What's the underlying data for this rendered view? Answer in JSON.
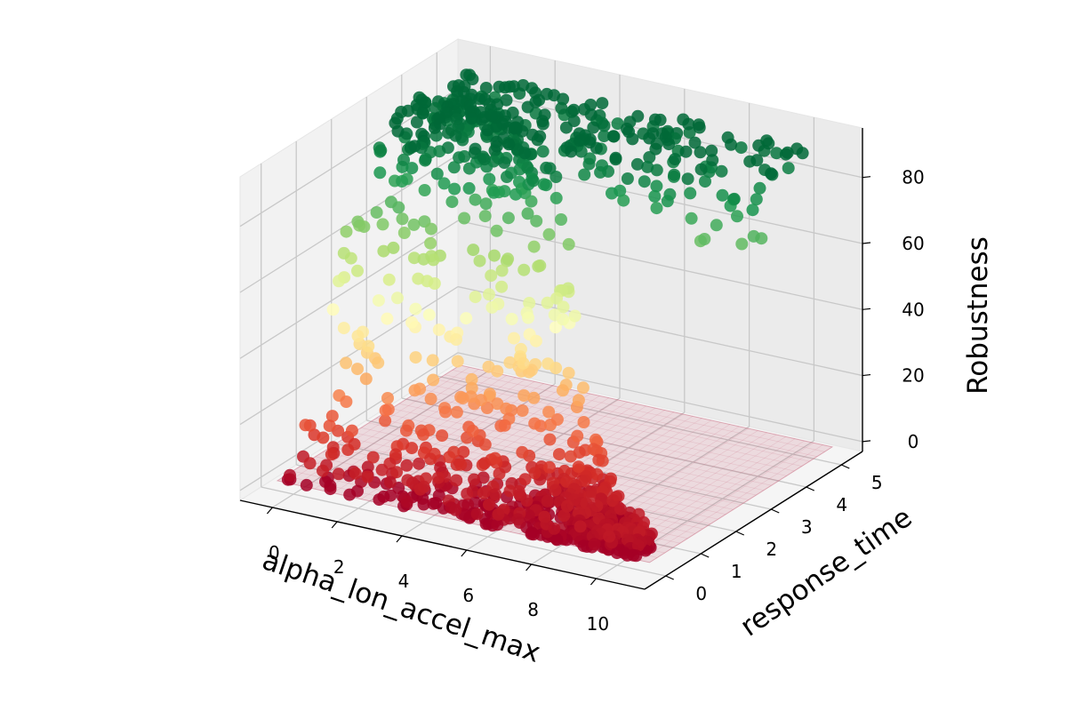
{
  "chart_data": {
    "type": "scatter",
    "title": "",
    "xlabel": "alpha_lon_accel_max",
    "ylabel": "response_time",
    "zlabel": "Robustness",
    "x_ticks": [
      "0",
      "2",
      "4",
      "6",
      "8",
      "10"
    ],
    "y_ticks": [
      "0",
      "1",
      "2",
      "3",
      "4",
      "5"
    ],
    "z_ticks": [
      "0",
      "20",
      "40",
      "60",
      "80"
    ],
    "xlim": [
      -1,
      11.5
    ],
    "ylim": [
      -0.6,
      5.6
    ],
    "zlim": [
      -3,
      95
    ],
    "colormap": "RdYlGn",
    "colormap_stops": [
      "#a50026",
      "#d73027",
      "#f46d43",
      "#fdae61",
      "#fee08b",
      "#ffffbf",
      "#d9ef8b",
      "#a6d96a",
      "#66bd63",
      "#1a9850",
      "#006837"
    ],
    "base_plane": {
      "z": 0,
      "color": "#c0506a",
      "x_range": [
        -0.5,
        11
      ],
      "y_range": [
        0,
        5.2
      ]
    },
    "points_description": "Sampled parameter points; robustness near 0 for low response_time and large alpha_lon_accel_max, rising to ~88 for response_time > ~3.5",
    "grid": true,
    "legend": "none"
  }
}
